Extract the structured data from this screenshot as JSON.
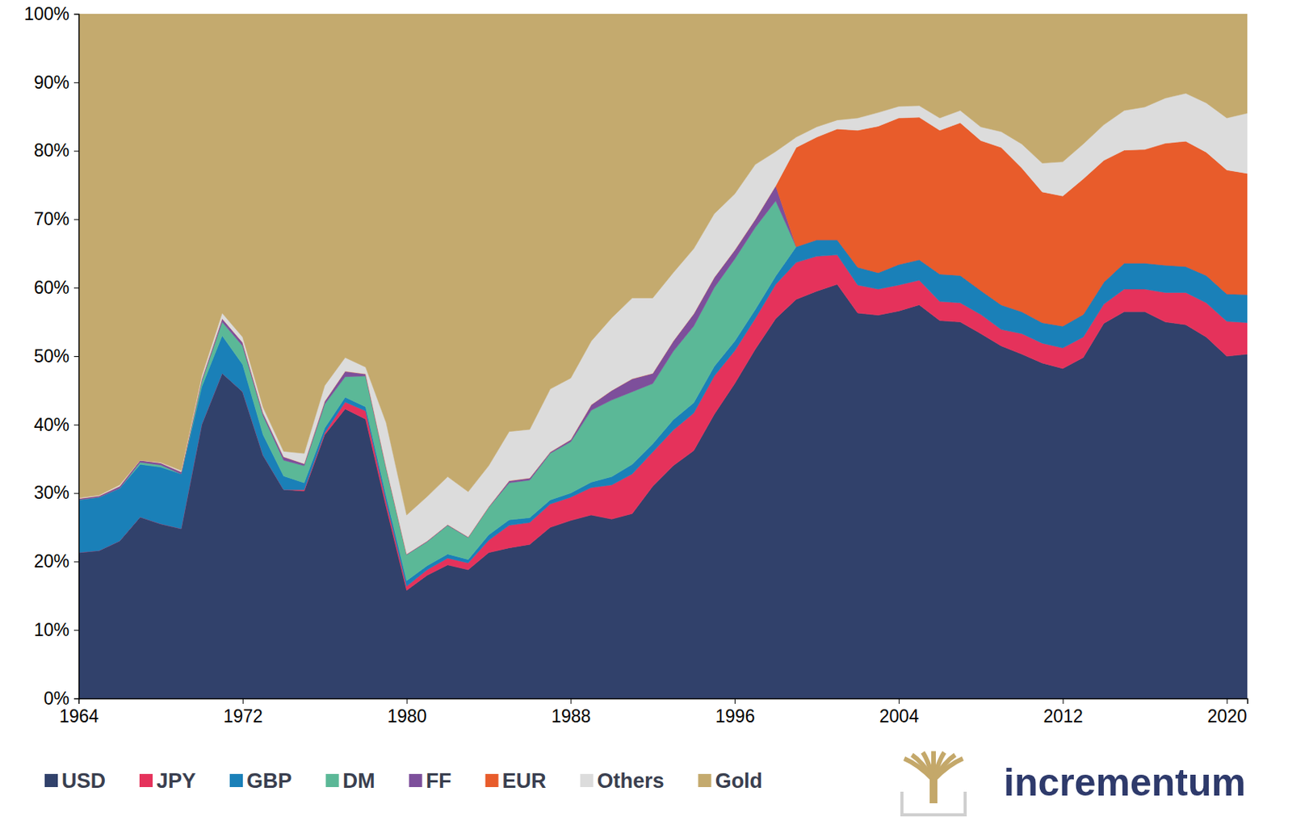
{
  "chart_data": {
    "type": "area",
    "stacked": true,
    "source": "incrementum",
    "x": [
      1964,
      1965,
      1966,
      1967,
      1968,
      1969,
      1970,
      1971,
      1972,
      1973,
      1974,
      1975,
      1976,
      1977,
      1978,
      1979,
      1980,
      1981,
      1982,
      1983,
      1984,
      1985,
      1986,
      1987,
      1988,
      1989,
      1990,
      1991,
      1992,
      1993,
      1994,
      1995,
      1996,
      1997,
      1998,
      1999,
      2000,
      2001,
      2002,
      2003,
      2004,
      2005,
      2006,
      2007,
      2008,
      2009,
      2010,
      2011,
      2012,
      2013,
      2014,
      2015,
      2016,
      2017,
      2018,
      2019,
      2020,
      2021
    ],
    "xlim": [
      1964,
      2021
    ],
    "xticks": [
      1964,
      1972,
      1980,
      1988,
      1996,
      2004,
      2012,
      2020
    ],
    "ylim": [
      0,
      100
    ],
    "yticks": [
      {
        "value": 0,
        "label": "0%"
      },
      {
        "value": 10,
        "label": "10%"
      },
      {
        "value": 20,
        "label": "20%"
      },
      {
        "value": 30,
        "label": "30%"
      },
      {
        "value": 40,
        "label": "40%"
      },
      {
        "value": 50,
        "label": "50%"
      },
      {
        "value": 60,
        "label": "60%"
      },
      {
        "value": 70,
        "label": "70%"
      },
      {
        "value": 80,
        "label": "80%"
      },
      {
        "value": 90,
        "label": "90%"
      },
      {
        "value": 100,
        "label": "100%"
      }
    ],
    "legend": "bottom",
    "series": [
      {
        "name": "USD",
        "color": "#31416b",
        "values": [
          21.3,
          21.6,
          23,
          26.5,
          25.5,
          24.8,
          40,
          47.5,
          44.8,
          35.5,
          30.5,
          30.3,
          38.5,
          42.3,
          40.8,
          28,
          15.8,
          18,
          19.5,
          18.8,
          21.3,
          22,
          22.5,
          25,
          26,
          26.8,
          26.2,
          27,
          31,
          34,
          36.2,
          41.5,
          46,
          51,
          55.5,
          58.3,
          59.5,
          60.5,
          56.3,
          56,
          56.6,
          57.5,
          55.2,
          55,
          53.3,
          51.5,
          50.3,
          49,
          48.2,
          49.8,
          54.8,
          56.5,
          56.5,
          55,
          54.6,
          52.8,
          50,
          50.3
        ]
      },
      {
        "name": "JPY",
        "color": "#e5325b",
        "values": [
          0,
          0,
          0,
          0,
          0,
          0,
          0,
          0,
          0,
          0,
          0,
          0.2,
          0.3,
          1,
          1.2,
          0.8,
          0.6,
          0.8,
          1,
          1,
          1.8,
          3.3,
          3.2,
          3.4,
          3.4,
          4,
          5,
          5.8,
          5,
          5.2,
          5.5,
          5.6,
          4.8,
          4.5,
          5,
          5.4,
          5.1,
          4.3,
          4.1,
          3.8,
          3.8,
          3.6,
          2.8,
          2.8,
          2.8,
          2.4,
          3,
          2.9,
          3,
          3,
          2.8,
          3.3,
          3.3,
          4.3,
          4.7,
          5,
          5.1,
          4.6
        ]
      },
      {
        "name": "GBP",
        "color": "#1a80b8",
        "values": [
          7.7,
          7.8,
          7.7,
          7.7,
          8.3,
          8,
          5.5,
          5.5,
          4,
          3,
          2,
          1,
          0.7,
          0.7,
          0.6,
          0.8,
          0.8,
          0.6,
          0.6,
          0.5,
          0.8,
          0.8,
          0.7,
          0.6,
          0.6,
          0.8,
          1.2,
          1.4,
          1.2,
          1.5,
          1.5,
          1.4,
          1.4,
          1.3,
          1.2,
          2.3,
          2.4,
          2.2,
          2.6,
          2.4,
          3,
          3,
          4,
          4,
          3.5,
          3.6,
          3.2,
          3,
          3.2,
          3.3,
          3.2,
          3.8,
          3.8,
          4,
          3.8,
          4,
          4,
          4.1
        ]
      },
      {
        "name": "DM",
        "color": "#5bb897",
        "values": [
          0,
          0,
          0,
          0.3,
          0.3,
          0,
          0.8,
          2,
          2.7,
          2.8,
          2.3,
          2.5,
          3.5,
          3,
          4.5,
          4,
          3.8,
          3.5,
          4.2,
          3.2,
          4,
          5.4,
          5.5,
          6.8,
          7.5,
          10.5,
          11.2,
          10.6,
          8.8,
          10,
          11.2,
          11.5,
          12,
          12,
          11,
          0,
          0,
          0,
          0,
          0,
          0,
          0,
          0,
          0,
          0,
          0,
          0,
          0,
          0,
          0,
          0,
          0,
          0,
          0,
          0,
          0,
          0,
          0
        ]
      },
      {
        "name": "FF",
        "color": "#7d4f9b",
        "values": [
          0.2,
          0.2,
          0.3,
          0.3,
          0.3,
          0.3,
          0.3,
          0.5,
          0.5,
          0.4,
          0.5,
          0.3,
          0.4,
          0.8,
          0.3,
          0.2,
          0.1,
          0.1,
          0.1,
          0.1,
          0.1,
          0.3,
          0.3,
          0.2,
          0.3,
          0.8,
          1.4,
          1.9,
          1.5,
          1.5,
          1.8,
          1.5,
          1.3,
          1.2,
          2.2,
          0,
          0,
          0,
          0,
          0,
          0,
          0,
          0,
          0,
          0,
          0,
          0,
          0,
          0,
          0,
          0,
          0,
          0,
          0,
          0,
          0,
          0,
          0
        ]
      },
      {
        "name": "EUR",
        "color": "#e85c2b",
        "values": [
          0,
          0,
          0,
          0,
          0,
          0,
          0,
          0,
          0,
          0,
          0,
          0,
          0,
          0,
          0,
          0,
          0,
          0,
          0,
          0,
          0,
          0,
          0,
          0,
          0,
          0,
          0,
          0,
          0,
          0,
          0,
          0,
          0,
          0,
          0,
          14.5,
          15,
          16.2,
          20,
          21.4,
          21.4,
          20.8,
          21,
          22.3,
          21.9,
          23,
          21,
          19.1,
          19,
          19.8,
          17.8,
          16.5,
          16.6,
          17.8,
          18.3,
          18,
          18.1,
          17.7
        ]
      },
      {
        "name": "Others",
        "color": "#dcdcdc",
        "values": [
          0.1,
          0.1,
          0.2,
          0,
          0.1,
          0.2,
          0.5,
          0.8,
          0.8,
          0.8,
          0.8,
          1.5,
          2.3,
          2,
          1,
          6.5,
          5.7,
          6.5,
          7,
          6.6,
          6,
          7.2,
          7.1,
          9.2,
          9,
          9.3,
          10.6,
          11.8,
          11,
          10,
          9.5,
          9.3,
          8.2,
          8,
          5,
          1.5,
          1.5,
          1.3,
          1.8,
          2,
          1.7,
          1.7,
          1.8,
          1.8,
          2,
          2.3,
          3.5,
          4.2,
          5,
          5.1,
          5.2,
          5.8,
          6.2,
          6.6,
          7,
          7.2,
          7.6,
          8.8
        ]
      },
      {
        "name": "Gold",
        "color": "#c4aa6e",
        "values": [
          70.7,
          70.3,
          68.8,
          65.2,
          65.5,
          66.7,
          52.9,
          43.7,
          47.2,
          57.5,
          63.9,
          64.2,
          54.3,
          50.2,
          51.6,
          59.7,
          73.2,
          70.5,
          67.6,
          69.8,
          66,
          61,
          60.7,
          54.8,
          53.2,
          47.8,
          44.4,
          41.5,
          41.5,
          37.8,
          34.3,
          29.2,
          26.3,
          22,
          20.1,
          18,
          16.5,
          15.5,
          15.2,
          14.4,
          13.5,
          13.4,
          15.2,
          14.1,
          16.5,
          17.2,
          19,
          21.8,
          21.6,
          19,
          16.2,
          14.1,
          13.6,
          12.3,
          11.6,
          13,
          15.2,
          14.5
        ]
      }
    ]
  }
}
